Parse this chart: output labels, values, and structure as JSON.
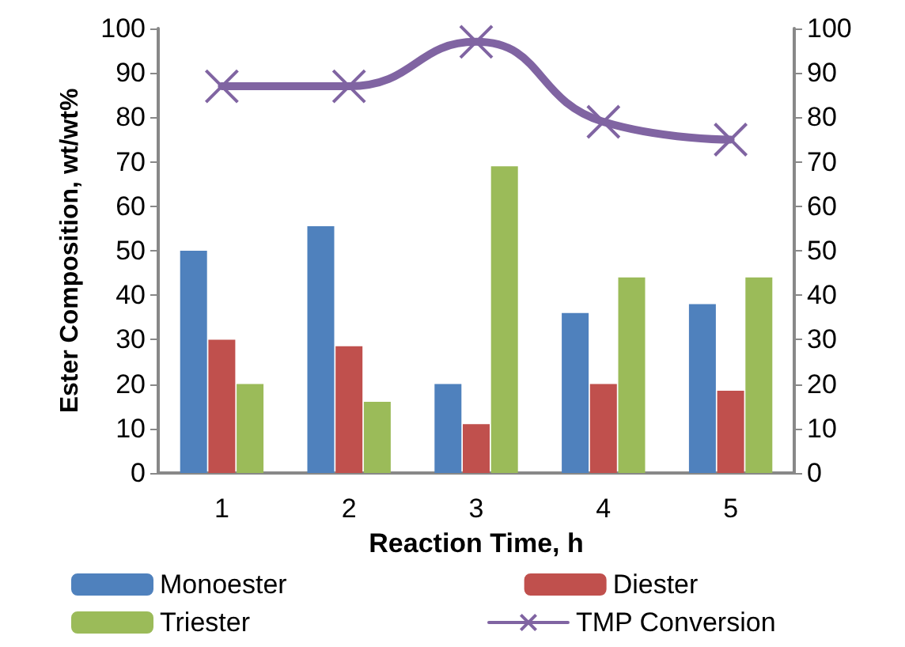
{
  "chart_data": {
    "type": "bar",
    "xlabel": "Reaction Time, h",
    "ylabel": "Ester Composition, wt/wt%",
    "categories": [
      "1",
      "2",
      "3",
      "4",
      "5"
    ],
    "series": [
      {
        "name": "Monoester",
        "color": "#4f81bd",
        "values": [
          50,
          55.5,
          20,
          36,
          38
        ]
      },
      {
        "name": "Diester",
        "color": "#c0504d",
        "values": [
          30,
          28.5,
          11,
          20,
          18.5
        ]
      },
      {
        "name": "Triester",
        "color": "#9bbb59",
        "values": [
          20,
          16,
          69,
          44,
          44
        ]
      },
      {
        "name": "TMP Conversion",
        "type": "line",
        "axis": "y2",
        "color": "#8064a2",
        "marker": "cross",
        "values": [
          87,
          87,
          97,
          79,
          75
        ]
      }
    ],
    "ylim": [
      0,
      100
    ],
    "yticks": [
      0,
      10,
      20,
      30,
      40,
      50,
      60,
      70,
      80,
      90,
      100
    ],
    "y2lim": [
      0,
      100
    ],
    "y2ticks": [
      0,
      10,
      20,
      30,
      40,
      50,
      60,
      70,
      80,
      90,
      100
    ],
    "grid": false,
    "legend": "bottom"
  }
}
